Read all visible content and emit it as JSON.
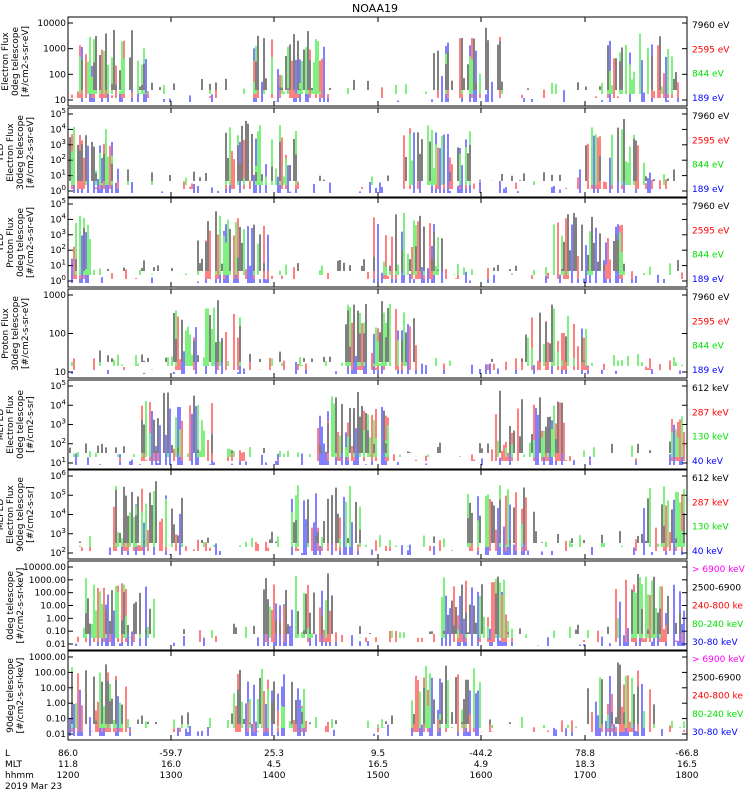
{
  "title": "NOAA19",
  "colors": {
    "blue": "#0000ff",
    "red": "#ff0000",
    "green": "#00e000",
    "black": "#000000",
    "magenta": "#ff00ff"
  },
  "footer": {
    "row_labels": [
      "L",
      "MLT",
      "hhmm"
    ],
    "date": "2019 Mar 23",
    "columns": [
      {
        "L": "86.0",
        "MLT": "11.8",
        "hhmm": "1200"
      },
      {
        "L": "-59.7",
        "MLT": "16.0",
        "hhmm": "1300"
      },
      {
        "L": "25.3",
        "MLT": "4.5",
        "hhmm": "1400"
      },
      {
        "L": "9.5",
        "MLT": "16.5",
        "hhmm": "1500"
      },
      {
        "L": "-44.2",
        "MLT": "4.9",
        "hhmm": "1600"
      },
      {
        "L": "78.8",
        "MLT": "18.3",
        "hhmm": "1700"
      },
      {
        "L": "-66.8",
        "MLT": "16.5",
        "hhmm": "1800"
      }
    ]
  },
  "chart_data": [
    {
      "type": "line",
      "ylabel": [
        "Electron Flux",
        "0deg telescope",
        "[#/cm2-s-sr-eV]"
      ],
      "scale": "log",
      "ytick_labels": [
        "10",
        "100",
        "1000",
        "10000"
      ],
      "legend": [
        {
          "label": "7960 eV",
          "color": "black"
        },
        {
          "label": "2595 eV",
          "color": "red"
        },
        {
          "label": "844 eV",
          "color": "green"
        },
        {
          "label": "189 eV",
          "color": "blue"
        }
      ]
    },
    {
      "type": "line",
      "ylabel": [
        "TED",
        "Electron Flux",
        "30deg telescope",
        "[#/cm2-s-sr-eV]"
      ],
      "scale": "log",
      "ytick_labels": [
        "10^0",
        "10^1",
        "10^2",
        "10^3",
        "10^4",
        "10^5"
      ],
      "legend": [
        {
          "label": "7960 eV",
          "color": "black"
        },
        {
          "label": "2595 eV",
          "color": "red"
        },
        {
          "label": "844 eV",
          "color": "green"
        },
        {
          "label": "189 eV",
          "color": "blue"
        }
      ]
    },
    {
      "type": "line",
      "ylabel": [
        "TED",
        "Proton Flux",
        "0deg telescope",
        "[#/cm2-s-sr-eV]"
      ],
      "scale": "log",
      "ytick_labels": [
        "10^0",
        "10^1",
        "10^2",
        "10^3",
        "10^4",
        "10^5"
      ],
      "legend": [
        {
          "label": "7960 eV",
          "color": "black"
        },
        {
          "label": "2595 eV",
          "color": "red"
        },
        {
          "label": "844 eV",
          "color": "green"
        },
        {
          "label": "189 eV",
          "color": "blue"
        }
      ]
    },
    {
      "type": "line",
      "ylabel": [
        "Proton Flux",
        "30deg telescope",
        "[#/cm2-s-sr-eV]"
      ],
      "scale": "log",
      "ytick_labels": [
        "10",
        "100",
        "1000"
      ],
      "legend": [
        {
          "label": "7960 eV",
          "color": "black"
        },
        {
          "label": "2595 eV",
          "color": "red"
        },
        {
          "label": "844 eV",
          "color": "green"
        },
        {
          "label": "189 eV",
          "color": "blue"
        }
      ]
    },
    {
      "type": "line",
      "ylabel": [
        "MEPED",
        "Electron Flux",
        "0deg telescope",
        "[#/cm2-s-sr]"
      ],
      "scale": "log",
      "ytick_labels": [
        "10^1",
        "10^2",
        "10^3",
        "10^4",
        "10^5"
      ],
      "legend": [
        {
          "label": "612 keV",
          "color": "black"
        },
        {
          "label": "287 keV",
          "color": "red"
        },
        {
          "label": "130 keV",
          "color": "green"
        },
        {
          "label": "40 keV",
          "color": "blue"
        }
      ]
    },
    {
      "type": "line",
      "ylabel": [
        "MEPED",
        "Electron Flux",
        "90deg telescope",
        "[#/cm2-s-sr]"
      ],
      "scale": "log",
      "ytick_labels": [
        "10^2",
        "10^3",
        "10^4",
        "10^5",
        "10^6"
      ],
      "legend": [
        {
          "label": "612 keV",
          "color": "black"
        },
        {
          "label": "287 keV",
          "color": "red"
        },
        {
          "label": "130 keV",
          "color": "green"
        },
        {
          "label": "40 keV",
          "color": "blue"
        }
      ]
    },
    {
      "type": "line",
      "ylabel": [
        "0deg telescope",
        "[#/cm2-s-sr-keV]"
      ],
      "scale": "log",
      "ytick_labels": [
        "0.01",
        "0.10",
        "1.00",
        "10.00",
        "100.00",
        "1000.00",
        "10000.00"
      ],
      "legend": [
        {
          "label": "> 6900 keV",
          "color": "magenta"
        },
        {
          "label": "2500-6900",
          "color": "black"
        },
        {
          "label": "240-800 ke",
          "color": "red"
        },
        {
          "label": "80-240 keV",
          "color": "green"
        },
        {
          "label": "30-80 keV",
          "color": "blue"
        }
      ]
    },
    {
      "type": "line",
      "ylabel": [
        "90deg telescope",
        "[#/cm2-s-sr-keV]"
      ],
      "scale": "log",
      "ytick_labels": [
        "0.01",
        "0.10",
        "1.00",
        "10.00",
        "100.00",
        "1000.00"
      ],
      "legend": [
        {
          "label": "> 6900 keV",
          "color": "magenta"
        },
        {
          "label": "2500-6900",
          "color": "black"
        },
        {
          "label": "240-800 ke",
          "color": "red"
        },
        {
          "label": "80-240 keV",
          "color": "green"
        },
        {
          "label": "30-80 keV",
          "color": "blue"
        }
      ]
    }
  ]
}
